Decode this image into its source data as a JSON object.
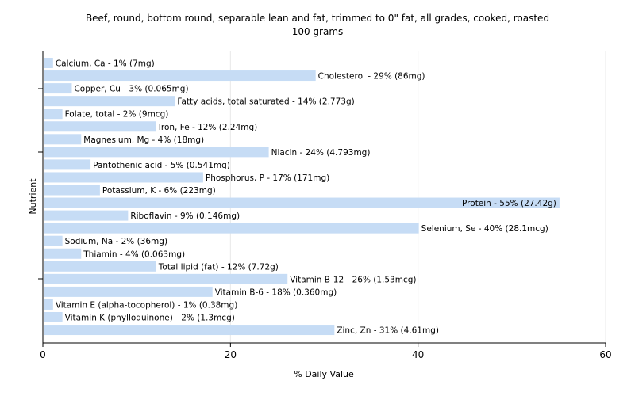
{
  "chart_data": {
    "type": "bar",
    "orientation": "horizontal",
    "title": "Beef, round, bottom round, separable lean and fat, trimmed to 0\" fat, all grades, cooked, roasted",
    "subtitle": "100 grams",
    "xlabel": "% Daily Value",
    "ylabel": "Nutrient",
    "xlim": [
      0,
      60
    ],
    "xticks": [
      0,
      20,
      40,
      60
    ],
    "grid": true,
    "bar_color": "#c6dcf5",
    "categories": [
      "Calcium, Ca",
      "Cholesterol",
      "Copper, Cu",
      "Fatty acids, total saturated",
      "Folate, total",
      "Iron, Fe",
      "Magnesium, Mg",
      "Niacin",
      "Pantothenic acid",
      "Phosphorus, P",
      "Potassium, K",
      "Protein",
      "Riboflavin",
      "Selenium, Se",
      "Sodium, Na",
      "Thiamin",
      "Total lipid (fat)",
      "Vitamin B-12",
      "Vitamin B-6",
      "Vitamin E (alpha-tocopherol)",
      "Vitamin K (phylloquinone)",
      "Zinc, Zn"
    ],
    "values": [
      1,
      29,
      3,
      14,
      2,
      12,
      4,
      24,
      5,
      17,
      6,
      55,
      9,
      40,
      2,
      4,
      12,
      26,
      18,
      1,
      2,
      31
    ],
    "labels": [
      "Calcium, Ca - 1% (7mg)",
      "Cholesterol - 29% (86mg)",
      "Copper, Cu - 3% (0.065mg)",
      "Fatty acids, total saturated - 14% (2.773g)",
      "Folate, total - 2% (9mcg)",
      "Iron, Fe - 12% (2.24mg)",
      "Magnesium, Mg - 4% (18mg)",
      "Niacin - 24% (4.793mg)",
      "Pantothenic acid - 5% (0.541mg)",
      "Phosphorus, P - 17% (171mg)",
      "Potassium, K - 6% (223mg)",
      "Protein - 55% (27.42g)",
      "Riboflavin - 9% (0.146mg)",
      "Selenium, Se - 40% (28.1mcg)",
      "Sodium, Na - 2% (36mg)",
      "Thiamin - 4% (0.063mg)",
      "Total lipid (fat) - 12% (7.72g)",
      "Vitamin B-12 - 26% (1.53mcg)",
      "Vitamin B-6 - 18% (0.360mg)",
      "Vitamin E (alpha-tocopherol) - 1% (0.38mg)",
      "Vitamin K (phylloquinone) - 2% (1.3mcg)",
      "Zinc, Zn - 31% (4.61mg)"
    ]
  }
}
